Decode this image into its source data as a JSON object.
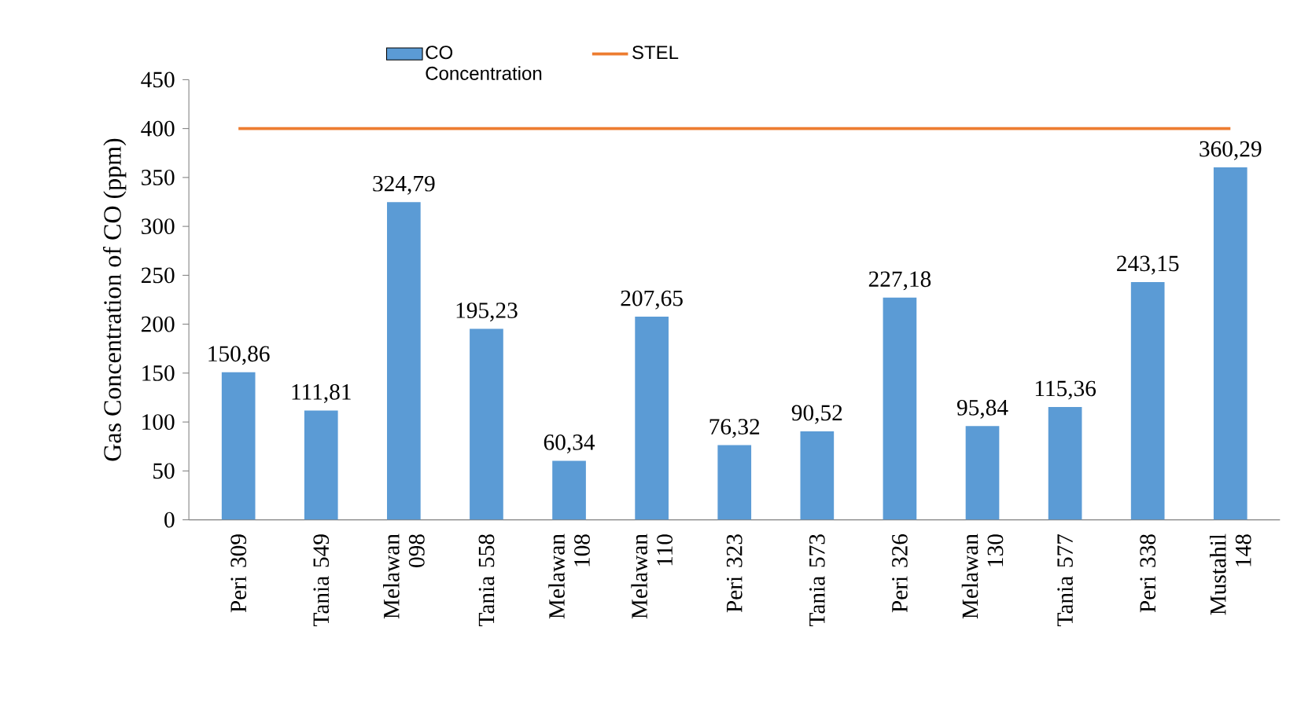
{
  "chart_data": {
    "type": "bar",
    "ylabel": "Gas Concentration of  CO (ppm)",
    "categories": [
      "Peri 309",
      "Tania 549",
      "Melawan 098",
      "Tania 558",
      "Melawan 108",
      "Melawan 110",
      "Peri 323",
      "Tania 573",
      "Peri 326",
      "Melawan 130",
      "Tania 577",
      "Peri 338",
      "Mustahil 148"
    ],
    "series": [
      {
        "name": "CO Concentration",
        "color": "#5b9bd5",
        "values": [
          150.86,
          111.81,
          324.79,
          195.23,
          60.34,
          207.65,
          76.32,
          90.52,
          227.18,
          95.84,
          115.36,
          243.15,
          360.29
        ],
        "value_labels": [
          "150,86",
          "111,81",
          "324,79",
          "195,23",
          "60,34",
          "207,65",
          "76,32",
          "90,52",
          "227,18",
          "95,84",
          "115,36",
          "243,15",
          "360,29"
        ]
      },
      {
        "name": "STEL",
        "type": "line",
        "color": "#ed7d31",
        "values": [
          400,
          400,
          400,
          400,
          400,
          400,
          400,
          400,
          400,
          400,
          400,
          400,
          400
        ]
      }
    ],
    "ylim": [
      0,
      450
    ],
    "yticks": [
      0,
      50,
      100,
      150,
      200,
      250,
      300,
      350,
      400,
      450
    ],
    "legend": "top"
  }
}
